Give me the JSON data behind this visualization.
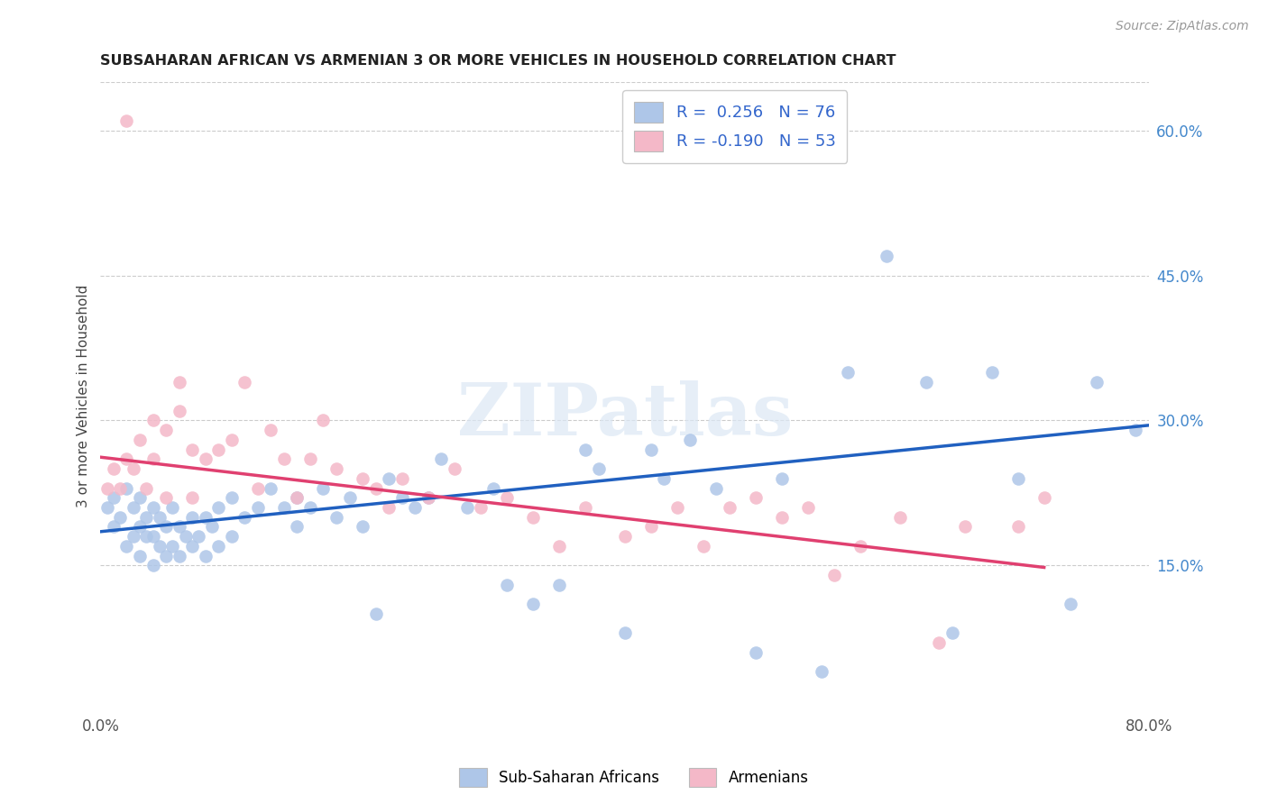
{
  "title": "SUBSAHARAN AFRICAN VS ARMENIAN 3 OR MORE VEHICLES IN HOUSEHOLD CORRELATION CHART",
  "source": "Source: ZipAtlas.com",
  "ylabel": "3 or more Vehicles in Household",
  "xlim": [
    0.0,
    0.8
  ],
  "ylim": [
    0.0,
    0.65
  ],
  "xtick_vals": [
    0.0,
    0.1,
    0.2,
    0.3,
    0.4,
    0.5,
    0.6,
    0.7,
    0.8
  ],
  "xticklabels": [
    "0.0%",
    "",
    "",
    "",
    "",
    "",
    "",
    "",
    "80.0%"
  ],
  "ytick_right_labels": [
    "60.0%",
    "45.0%",
    "30.0%",
    "15.0%"
  ],
  "ytick_right_values": [
    0.6,
    0.45,
    0.3,
    0.15
  ],
  "blue_color": "#aec6e8",
  "pink_color": "#f4b8c8",
  "blue_line_color": "#2060c0",
  "pink_line_color": "#e04070",
  "legend_blue_label": "R =  0.256   N = 76",
  "legend_pink_label": "R = -0.190   N = 53",
  "watermark": "ZIPatlas",
  "blue_scatter_x": [
    0.005,
    0.01,
    0.01,
    0.015,
    0.02,
    0.02,
    0.025,
    0.025,
    0.03,
    0.03,
    0.03,
    0.035,
    0.035,
    0.04,
    0.04,
    0.04,
    0.045,
    0.045,
    0.05,
    0.05,
    0.055,
    0.055,
    0.06,
    0.06,
    0.065,
    0.07,
    0.07,
    0.075,
    0.08,
    0.08,
    0.085,
    0.09,
    0.09,
    0.1,
    0.1,
    0.11,
    0.12,
    0.13,
    0.14,
    0.15,
    0.15,
    0.16,
    0.17,
    0.18,
    0.19,
    0.2,
    0.21,
    0.22,
    0.23,
    0.24,
    0.25,
    0.26,
    0.28,
    0.3,
    0.31,
    0.33,
    0.35,
    0.37,
    0.38,
    0.4,
    0.42,
    0.43,
    0.45,
    0.47,
    0.5,
    0.52,
    0.55,
    0.57,
    0.6,
    0.63,
    0.65,
    0.68,
    0.7,
    0.74,
    0.76,
    0.79
  ],
  "blue_scatter_y": [
    0.21,
    0.19,
    0.22,
    0.2,
    0.17,
    0.23,
    0.18,
    0.21,
    0.16,
    0.19,
    0.22,
    0.18,
    0.2,
    0.15,
    0.18,
    0.21,
    0.17,
    0.2,
    0.16,
    0.19,
    0.17,
    0.21,
    0.16,
    0.19,
    0.18,
    0.17,
    0.2,
    0.18,
    0.16,
    0.2,
    0.19,
    0.17,
    0.21,
    0.18,
    0.22,
    0.2,
    0.21,
    0.23,
    0.21,
    0.19,
    0.22,
    0.21,
    0.23,
    0.2,
    0.22,
    0.19,
    0.1,
    0.24,
    0.22,
    0.21,
    0.22,
    0.26,
    0.21,
    0.23,
    0.13,
    0.11,
    0.13,
    0.27,
    0.25,
    0.08,
    0.27,
    0.24,
    0.28,
    0.23,
    0.06,
    0.24,
    0.04,
    0.35,
    0.47,
    0.34,
    0.08,
    0.35,
    0.24,
    0.11,
    0.34,
    0.29
  ],
  "pink_scatter_x": [
    0.005,
    0.01,
    0.015,
    0.02,
    0.02,
    0.025,
    0.03,
    0.035,
    0.04,
    0.04,
    0.05,
    0.05,
    0.06,
    0.06,
    0.07,
    0.07,
    0.08,
    0.09,
    0.1,
    0.11,
    0.12,
    0.13,
    0.14,
    0.15,
    0.16,
    0.17,
    0.18,
    0.2,
    0.21,
    0.22,
    0.23,
    0.25,
    0.27,
    0.29,
    0.31,
    0.33,
    0.35,
    0.37,
    0.4,
    0.42,
    0.44,
    0.46,
    0.48,
    0.5,
    0.52,
    0.54,
    0.56,
    0.58,
    0.61,
    0.64,
    0.66,
    0.7,
    0.72
  ],
  "pink_scatter_y": [
    0.23,
    0.25,
    0.23,
    0.26,
    0.61,
    0.25,
    0.28,
    0.23,
    0.26,
    0.3,
    0.22,
    0.29,
    0.31,
    0.34,
    0.27,
    0.22,
    0.26,
    0.27,
    0.28,
    0.34,
    0.23,
    0.29,
    0.26,
    0.22,
    0.26,
    0.3,
    0.25,
    0.24,
    0.23,
    0.21,
    0.24,
    0.22,
    0.25,
    0.21,
    0.22,
    0.2,
    0.17,
    0.21,
    0.18,
    0.19,
    0.21,
    0.17,
    0.21,
    0.22,
    0.2,
    0.21,
    0.14,
    0.17,
    0.2,
    0.07,
    0.19,
    0.19,
    0.22
  ],
  "blue_line_x": [
    0.0,
    0.8
  ],
  "blue_line_y": [
    0.185,
    0.295
  ],
  "pink_line_x": [
    0.0,
    0.72
  ],
  "pink_line_y": [
    0.262,
    0.148
  ],
  "figsize": [
    14.06,
    8.92
  ],
  "dpi": 100
}
